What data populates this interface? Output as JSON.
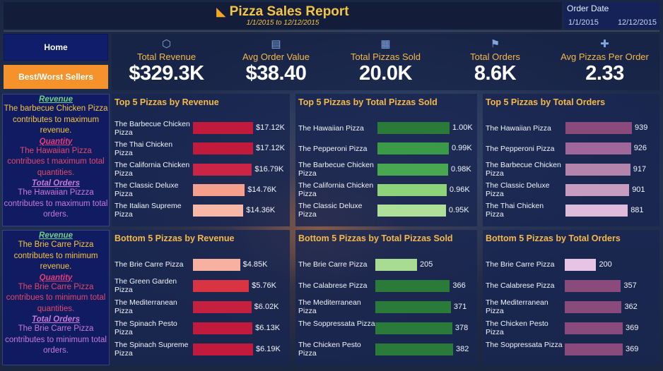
{
  "header": {
    "title": "Pizza Sales Report",
    "pizza_icon": "pizza-icon",
    "subtitle": "1/1/2015 to 12/12/2015",
    "date_filter": {
      "label": "Order Date",
      "from": "1/1/2015",
      "to": "12/12/2015"
    }
  },
  "nav": {
    "home": "Home",
    "best_worst": "Best/Worst Sellers",
    "active_color": "#f5922b"
  },
  "kpis": [
    {
      "label": "Total  Revenue",
      "value": "$329.3K",
      "icon": "money-icon"
    },
    {
      "label": "Avg Order Value",
      "value": "$38.40",
      "icon": "order-ticket-icon"
    },
    {
      "label": "Total Pizzas Sold",
      "value": "20.0K",
      "icon": "pizza-box-icon"
    },
    {
      "label": "Total Orders",
      "value": "8.6K",
      "icon": "delivery-icon"
    },
    {
      "label": "Avg Pizzas Per Order",
      "value": "2.33",
      "icon": "gift-box-icon"
    }
  ],
  "insights": {
    "top": {
      "revenue_h": "Revenue",
      "revenue_t": "The barbecue Chicken Pizza contributes to maximum revenue.",
      "quantity_h": "Quantity",
      "quantity_t": "The Hawaiian Pizza contribues t maximum total quantities.",
      "orders_h": "Total Orders",
      "orders_t": "The Hawaiian Pizzza contributes to maximum total orders."
    },
    "bottom": {
      "revenue_h": "Revenue",
      "revenue_t": "The Brie Carre Pizza contributes to minimum revenue.",
      "quantity_h": "Quantity",
      "quantity_t": "The Brie Carre Pizza contribues to minimum total quantities.",
      "orders_h": "Total Orders",
      "orders_t": "The Brie Carre Pizza contributes to minimum total orders."
    }
  },
  "chart_data": [
    {
      "type": "bar",
      "title": "Top 5 Pizzas by Revenue",
      "categories": [
        "The Barbecue Chicken Pizza",
        "The Thai Chicken Pizza",
        "The California Chicken Pizza",
        "The Classic Deluxe Pizza",
        "The Italian Supreme Pizza"
      ],
      "values": [
        17120,
        17120,
        16790,
        14760,
        14360
      ],
      "labels": [
        "$17.12K",
        "$17.12K",
        "$16.79K",
        "$14.76K",
        "$14.36K"
      ],
      "colors": [
        "#c21a3c",
        "#c21a3c",
        "#cc2444",
        "#f5a08c",
        "#f8b8a8"
      ]
    },
    {
      "type": "bar",
      "title": "Top 5 Pizzas by Total Pizzas Sold",
      "categories": [
        "The Hawaiian Pizza",
        "The Pepperoni Pizza",
        "The Barbecue Chicken Pizza",
        "The California Chicken Pizza",
        "The Classic Deluxe Pizza"
      ],
      "values": [
        1000,
        990,
        980,
        960,
        950
      ],
      "labels": [
        "1.00K",
        "0.99K",
        "0.98K",
        "0.96K",
        "0.95K"
      ],
      "colors": [
        "#2a7a3a",
        "#3a9a48",
        "#48a852",
        "#8ed27a",
        "#aee09a"
      ]
    },
    {
      "type": "bar",
      "title": "Top 5 Pizzas by Total Orders",
      "categories": [
        "The Hawaiian Pizza",
        "The Pepperoni Pizza",
        "The Barbecue Chicken Pizza",
        "The Classic Deluxe Pizza",
        "The Thai Chicken Pizza"
      ],
      "values": [
        939,
        926,
        917,
        901,
        881
      ],
      "labels": [
        "939",
        "926",
        "917",
        "901",
        "881"
      ],
      "colors": [
        "#8a4a7c",
        "#a0689a",
        "#b484ac",
        "#c79cc0",
        "#e0bcdc"
      ]
    },
    {
      "type": "bar",
      "title": "Bottom 5 Pizzas by Revenue",
      "categories": [
        "The Brie Carre Pizza",
        "The Green Garden Pizza",
        "The Mediterranean Pizza",
        "The Spinach Pesto Pizza",
        "The Spinach Supreme Pizza"
      ],
      "values": [
        4850,
        5760,
        6020,
        6130,
        6190
      ],
      "labels": [
        "$4.85K",
        "$5.76K",
        "$6.02K",
        "$6.13K",
        "$6.19K"
      ],
      "colors": [
        "#f8b0a0",
        "#d83444",
        "#c62040",
        "#c21a3c",
        "#c21a3c"
      ]
    },
    {
      "type": "bar",
      "title": "Bottom 5 Pizzas by Total Pizzas Sold",
      "categories": [
        "The Brie Carre Pizza",
        "The Calabrese Pizza",
        "The Mediterranean Pizza",
        "The Soppressata Pizza",
        "The Chicken Pesto Pizza"
      ],
      "values": [
        205,
        366,
        371,
        378,
        382
      ],
      "labels": [
        "205",
        "366",
        "371",
        "378",
        "382"
      ],
      "colors": [
        "#a8dc92",
        "#2a7a3a",
        "#2a7a3a",
        "#2a7a3a",
        "#2a7a3a"
      ]
    },
    {
      "type": "bar",
      "title": "Bottom 5 Pizzas by Total Orders",
      "categories": [
        "The Brie Carre Pizza",
        "The Calabrese Pizza",
        "The Mediterranean Pizza",
        "The Chicken Pesto Pizza",
        "The Soppressata Pizza"
      ],
      "values": [
        200,
        357,
        362,
        369,
        369
      ],
      "labels": [
        "200",
        "357",
        "362",
        "369",
        "369"
      ],
      "colors": [
        "#e8c4e4",
        "#8a4a7c",
        "#8a4a7c",
        "#8a4a7c",
        "#8a4a7c"
      ]
    }
  ]
}
